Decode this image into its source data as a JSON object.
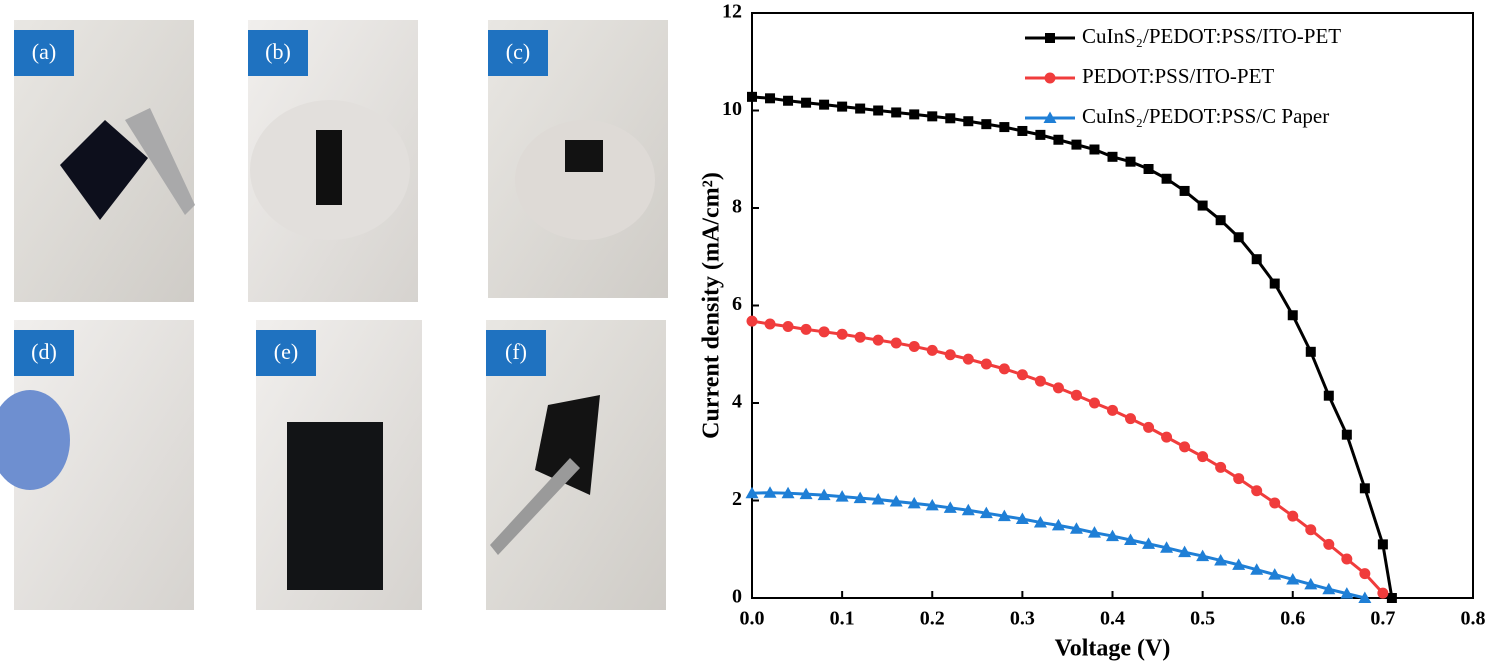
{
  "photos": {
    "labels": [
      "(a)",
      "(b)",
      "(c)",
      "(d)",
      "(e)",
      "(f)"
    ]
  },
  "chart_data": {
    "type": "line",
    "xlabel": "Voltage (V)",
    "ylabel": "Current density (mA/cm²)",
    "xlim": [
      0,
      0.8
    ],
    "ylim": [
      0,
      12
    ],
    "xticks": [
      {
        "value": 0,
        "label": "0.0"
      },
      0.1,
      0.2,
      0.3,
      0.4,
      0.5,
      0.6,
      0.7,
      0.8
    ],
    "yticks": [
      0,
      2,
      4,
      6,
      8,
      10,
      12
    ],
    "legend": "upper right",
    "series": [
      {
        "name": "CuInS₂/PEDOT:PSS/ITO-PET",
        "color": "#000000",
        "marker": "square",
        "x": [
          0,
          0.02,
          0.04,
          0.06,
          0.08,
          0.1,
          0.12,
          0.14,
          0.16,
          0.18,
          0.2,
          0.22,
          0.24,
          0.26,
          0.28,
          0.3,
          0.32,
          0.34,
          0.36,
          0.38,
          0.4,
          0.42,
          0.44,
          0.46,
          0.48,
          0.5,
          0.52,
          0.54,
          0.56,
          0.58,
          0.6,
          0.62,
          0.64,
          0.66,
          0.68,
          0.7,
          0.71
        ],
        "values": [
          10.28,
          10.25,
          10.2,
          10.16,
          10.12,
          10.08,
          10.04,
          10.0,
          9.96,
          9.92,
          9.88,
          9.84,
          9.78,
          9.72,
          9.66,
          9.58,
          9.5,
          9.4,
          9.3,
          9.2,
          9.05,
          8.95,
          8.8,
          8.6,
          8.35,
          8.05,
          7.75,
          7.4,
          6.95,
          6.45,
          5.8,
          5.05,
          4.15,
          3.35,
          2.25,
          1.1,
          0
        ]
      },
      {
        "name": "PEDOT:PSS/ITO-PET",
        "color": "#f03c3c",
        "marker": "circle",
        "x": [
          0,
          0.02,
          0.04,
          0.06,
          0.08,
          0.1,
          0.12,
          0.14,
          0.16,
          0.18,
          0.2,
          0.22,
          0.24,
          0.26,
          0.28,
          0.3,
          0.32,
          0.34,
          0.36,
          0.38,
          0.4,
          0.42,
          0.44,
          0.46,
          0.48,
          0.5,
          0.52,
          0.54,
          0.56,
          0.58,
          0.6,
          0.62,
          0.64,
          0.66,
          0.68,
          0.7
        ],
        "values": [
          5.68,
          5.62,
          5.57,
          5.51,
          5.46,
          5.41,
          5.35,
          5.29,
          5.23,
          5.16,
          5.08,
          4.99,
          4.9,
          4.8,
          4.7,
          4.58,
          4.45,
          4.31,
          4.16,
          4.0,
          3.85,
          3.68,
          3.5,
          3.3,
          3.1,
          2.9,
          2.68,
          2.45,
          2.2,
          1.95,
          1.68,
          1.4,
          1.1,
          0.8,
          0.5,
          0.1
        ]
      },
      {
        "name": "CuInS₂/PEDOT:PSS/C Paper",
        "color": "#1f7fd6",
        "marker": "triangle",
        "x": [
          0,
          0.02,
          0.04,
          0.06,
          0.08,
          0.1,
          0.12,
          0.14,
          0.16,
          0.18,
          0.2,
          0.22,
          0.24,
          0.26,
          0.28,
          0.3,
          0.32,
          0.34,
          0.36,
          0.38,
          0.4,
          0.42,
          0.44,
          0.46,
          0.48,
          0.5,
          0.52,
          0.54,
          0.56,
          0.58,
          0.6,
          0.62,
          0.64,
          0.66,
          0.68
        ],
        "values": [
          2.15,
          2.16,
          2.15,
          2.13,
          2.11,
          2.08,
          2.05,
          2.02,
          1.98,
          1.94,
          1.9,
          1.85,
          1.8,
          1.74,
          1.68,
          1.62,
          1.55,
          1.49,
          1.42,
          1.34,
          1.27,
          1.19,
          1.11,
          1.03,
          0.94,
          0.86,
          0.77,
          0.68,
          0.58,
          0.48,
          0.38,
          0.28,
          0.18,
          0.09,
          0
        ]
      }
    ]
  }
}
